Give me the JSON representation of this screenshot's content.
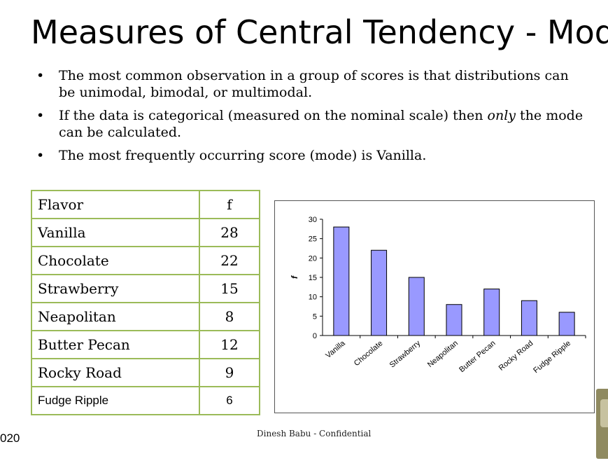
{
  "slide": {
    "title": "Measures of Central Tendency - Mode",
    "bullets": [
      {
        "text": "The most common observation in a group of scores is that distributions can be unimodal, bimodal, or multimodal."
      },
      {
        "before": "If the data is categorical (measured on the nominal scale) then ",
        "em": "only",
        "after": " the mode can be calculated."
      },
      {
        "text": "The most frequently occurring score (mode) is Vanilla."
      }
    ],
    "bullet_glyph": "•",
    "footer": "Dinesh Babu - Confidential",
    "page_fragment": "020"
  },
  "table": {
    "header": [
      "Flavor",
      "f"
    ],
    "rows": [
      [
        "Vanilla",
        "28"
      ],
      [
        "Chocolate",
        "22"
      ],
      [
        "Strawberry",
        "15"
      ],
      [
        "Neapolitan",
        "8"
      ],
      [
        "Butter Pecan",
        "12"
      ],
      [
        "Rocky Road",
        "9"
      ],
      [
        "Fudge Ripple",
        "6"
      ]
    ],
    "border_color": "#9bbb59"
  },
  "chart_data": {
    "type": "bar",
    "categories": [
      "Vanilla",
      "Chocolate",
      "Strawberry",
      "Neapolitan",
      "Butter Pecan",
      "Rocky Road",
      "Fudge Ripple"
    ],
    "values": [
      28,
      22,
      15,
      8,
      12,
      9,
      6
    ],
    "title": "",
    "xlabel": "",
    "ylabel": "f",
    "ylim": [
      0,
      30
    ],
    "yticks": [
      0,
      5,
      10,
      15,
      20,
      25,
      30
    ],
    "grid": false,
    "legend": "none",
    "bar_color": "#9999ff",
    "bar_edge_color": "#000000"
  }
}
